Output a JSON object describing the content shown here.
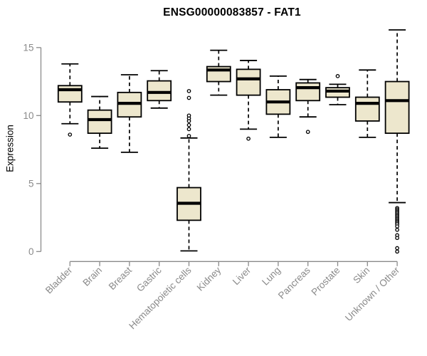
{
  "title": "ENSG00000083857 - FAT1",
  "colors": {
    "box_fill": "#EDE7CD",
    "box_stroke": "#000000",
    "median": "#000000",
    "axis": "#8A8A8A",
    "title_color": "#000000",
    "background": "#FFFFFF",
    "outlier_fill": "#FFFFFF"
  },
  "chart_data": {
    "type": "box",
    "title": "ENSG00000083857 - FAT1",
    "xlabel": "",
    "ylabel": "Expression",
    "ylim": [
      0,
      15
    ],
    "yticks": [
      0,
      5,
      10,
      15
    ],
    "grid": false,
    "legend": false,
    "categories": [
      "Bladder",
      "Brain",
      "Breast",
      "Gastric",
      "Hematopoietic cells",
      "Kidney",
      "Liver",
      "Lung",
      "Pancreas",
      "Prostate",
      "Skin",
      "Unknown / Other"
    ],
    "series": [
      {
        "name": "Bladder",
        "whisker_low": 9.4,
        "q1": 11.0,
        "median": 11.9,
        "q3": 12.2,
        "whisker_high": 13.8,
        "outliers": [
          8.6
        ]
      },
      {
        "name": "Brain",
        "whisker_low": 7.6,
        "q1": 8.7,
        "median": 9.7,
        "q3": 10.4,
        "whisker_high": 11.4,
        "outliers": []
      },
      {
        "name": "Breast",
        "whisker_low": 7.3,
        "q1": 9.9,
        "median": 10.9,
        "q3": 11.7,
        "whisker_high": 13.0,
        "outliers": []
      },
      {
        "name": "Gastric",
        "whisker_low": 10.55,
        "q1": 11.1,
        "median": 11.7,
        "q3": 12.55,
        "whisker_high": 13.3,
        "outliers": []
      },
      {
        "name": "Hematopoietic cells",
        "whisker_low": 0.05,
        "q1": 2.3,
        "median": 3.55,
        "q3": 4.7,
        "whisker_high": 8.35,
        "outliers": [
          8.5,
          9.0,
          9.3,
          9.6,
          9.8,
          10.0,
          11.3,
          11.8
        ]
      },
      {
        "name": "Kidney",
        "whisker_low": 11.5,
        "q1": 12.5,
        "median": 13.35,
        "q3": 13.6,
        "whisker_high": 14.8,
        "outliers": []
      },
      {
        "name": "Liver",
        "whisker_low": 9.0,
        "q1": 11.5,
        "median": 12.7,
        "q3": 13.4,
        "whisker_high": 14.05,
        "outliers": [
          8.3
        ]
      },
      {
        "name": "Lung",
        "whisker_low": 8.4,
        "q1": 10.1,
        "median": 11.0,
        "q3": 11.9,
        "whisker_high": 12.9,
        "outliers": []
      },
      {
        "name": "Pancreas",
        "whisker_low": 9.9,
        "q1": 11.1,
        "median": 12.05,
        "q3": 12.4,
        "whisker_high": 12.65,
        "outliers": [
          8.8
        ]
      },
      {
        "name": "Prostate",
        "whisker_low": 10.8,
        "q1": 11.35,
        "median": 11.8,
        "q3": 12.05,
        "whisker_high": 12.3,
        "outliers": [
          12.9
        ]
      },
      {
        "name": "Skin",
        "whisker_low": 8.4,
        "q1": 9.6,
        "median": 10.9,
        "q3": 11.35,
        "whisker_high": 13.35,
        "outliers": []
      },
      {
        "name": "Unknown / Other",
        "whisker_low": 3.6,
        "q1": 8.7,
        "median": 11.1,
        "q3": 12.5,
        "whisker_high": 16.3,
        "outliers": [
          3.2,
          3.1,
          3.0,
          2.9,
          2.8,
          2.7,
          2.6,
          2.5,
          2.4,
          2.3,
          2.2,
          2.1,
          2.0,
          1.85,
          1.6,
          1.2,
          1.0,
          0.25,
          0.0
        ]
      }
    ]
  }
}
